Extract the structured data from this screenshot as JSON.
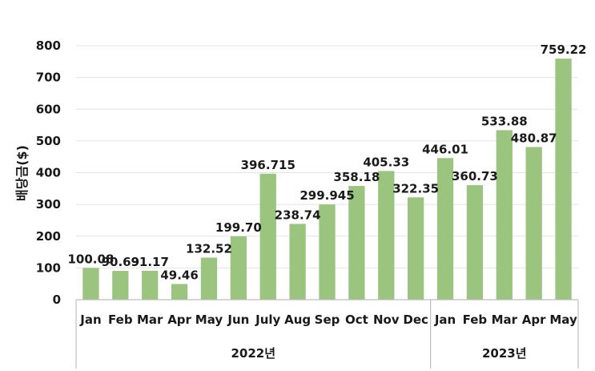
{
  "chart_data": {
    "type": "bar",
    "ylabel": "배당금($)",
    "ylim": [
      0,
      800
    ],
    "yticks": [
      0,
      100,
      200,
      300,
      400,
      500,
      600,
      700,
      800
    ],
    "grid": true,
    "bar_color": "#9bc47f",
    "categories": [
      "Jan",
      "Feb",
      "Mar",
      "Apr",
      "May",
      "Jun",
      "July",
      "Aug",
      "Sep",
      "Oct",
      "Nov",
      "Dec",
      "Jan",
      "Feb",
      "Mar",
      "Apr",
      "May"
    ],
    "values": [
      100.08,
      90.69,
      91.17,
      49.46,
      132.52,
      199.7,
      396.715,
      238.74,
      299.945,
      358.18,
      405.33,
      322.35,
      446.01,
      360.73,
      533.88,
      480.87,
      759.22
    ],
    "data_labels": [
      "100.08",
      "90.69",
      "91.17",
      "49.46",
      "132.52",
      "199.70",
      "396.715",
      "238.74",
      "299.945",
      "358.18",
      "405.33",
      "322.35",
      "446.01",
      "360.73",
      "533.88",
      "480.87",
      "759.22"
    ],
    "groups": [
      {
        "label": "2022년",
        "count": 12
      },
      {
        "label": "2023년",
        "count": 5
      }
    ]
  }
}
